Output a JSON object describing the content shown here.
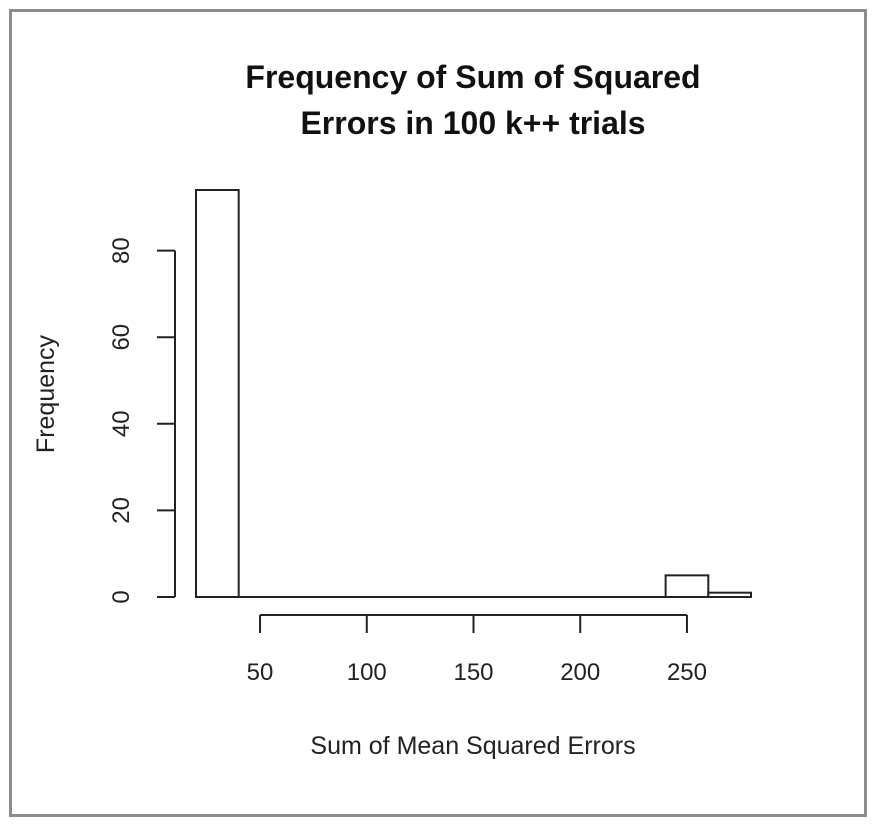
{
  "chart_data": {
    "type": "bar",
    "title_lines": [
      "Frequency of Sum of Squared",
      "Errors in 100 k++ trials"
    ],
    "xlabel": "Sum of Mean Squared Errors",
    "ylabel": "Frequency",
    "bins": [
      {
        "from": 20,
        "to": 40,
        "count": 94
      },
      {
        "from": 40,
        "to": 240,
        "count": 0
      },
      {
        "from": 240,
        "to": 260,
        "count": 5
      },
      {
        "from": 260,
        "to": 280,
        "count": 1
      }
    ],
    "xticks": [
      50,
      100,
      150,
      200,
      250
    ],
    "yticks": [
      0,
      20,
      40,
      60,
      80
    ],
    "xlim": [
      20,
      280
    ],
    "ylim": [
      0,
      94
    ],
    "grid": false,
    "legend": "none"
  }
}
